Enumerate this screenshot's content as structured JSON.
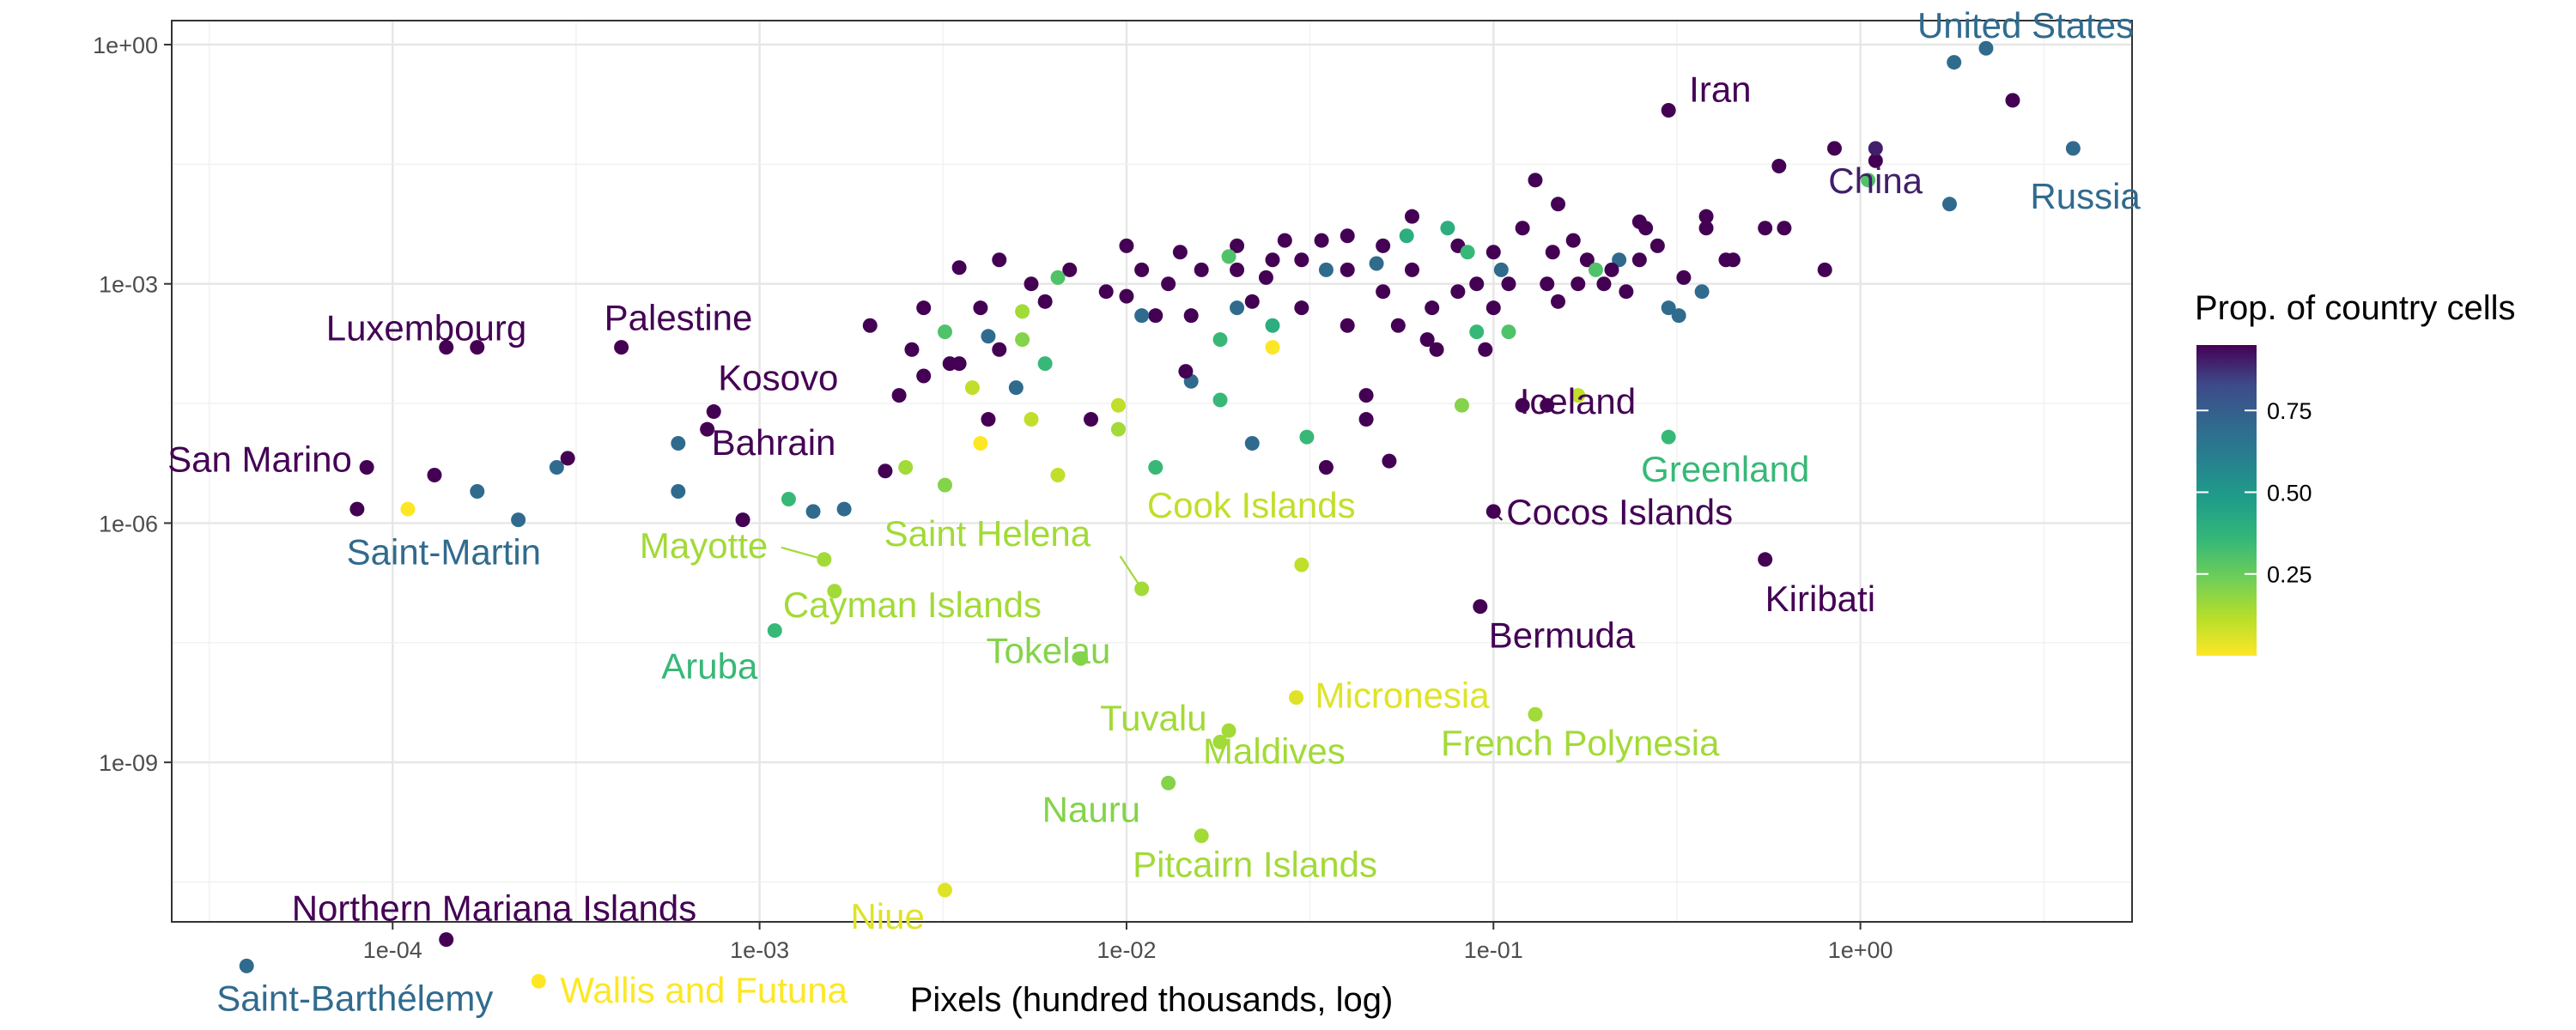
{
  "chart_data": {
    "type": "scatter",
    "xlabel": "Pixels (hundred thousands, log)",
    "ylabel": "",
    "xscale": "log10",
    "yscale": "log10",
    "xlim": [
      2.5e-05,
      5.5
    ],
    "ylim": [
      1e-11,
      2
    ],
    "x_ticks": [
      {
        "value": 0.0001,
        "label": "1e-04"
      },
      {
        "value": 0.001,
        "label": "1e-03"
      },
      {
        "value": 0.01,
        "label": "1e-02"
      },
      {
        "value": 0.1,
        "label": "1e-01"
      },
      {
        "value": 1,
        "label": "1e+00"
      }
    ],
    "y_ticks": [
      {
        "value": 1e-09,
        "label": "1e-09"
      },
      {
        "value": 1e-06,
        "label": "1e-06"
      },
      {
        "value": 0.001,
        "label": "1e-03"
      },
      {
        "value": 1,
        "label": "1e+00"
      }
    ],
    "grid": true,
    "color_scale": {
      "name": "viridis",
      "title": "Prop. of country cells",
      "range": [
        0.0,
        0.95
      ],
      "ticks": [
        {
          "value": 0.25,
          "label": "0.25"
        },
        {
          "value": 0.5,
          "label": "0.50"
        },
        {
          "value": 0.75,
          "label": "0.75"
        }
      ],
      "legend_position": "right"
    },
    "labeled_points": [
      {
        "name": "United States",
        "x": 2.2,
        "y": 0.9,
        "color": 0.7
      },
      {
        "name": "China",
        "x": 1.1,
        "y": 0.05,
        "color": 0.9
      },
      {
        "name": "Russia",
        "x": 3.8,
        "y": 0.05,
        "color": 0.7
      },
      {
        "name": "Iran",
        "x": 0.3,
        "y": 0.15,
        "color": 0.95
      },
      {
        "name": "Iceland",
        "x": 0.14,
        "y": 3e-05,
        "color": 0.95
      },
      {
        "name": "Greenland",
        "x": 0.3,
        "y": 1.2e-05,
        "color": 0.35
      },
      {
        "name": "Cocos Islands",
        "x": 0.1,
        "y": 1.4e-06,
        "color": 0.95
      },
      {
        "name": "Bermuda",
        "x": 0.092,
        "y": 9e-08,
        "color": 0.95
      },
      {
        "name": "Kiribati",
        "x": 0.55,
        "y": 3.5e-07,
        "color": 0.95
      },
      {
        "name": "Palestine",
        "x": 0.00042,
        "y": 0.00016,
        "color": 0.95
      },
      {
        "name": "Luxembourg",
        "x": 0.00014,
        "y": 0.00016,
        "color": 0.95
      },
      {
        "name": "Kosovo",
        "x": 0.00075,
        "y": 2.5e-05,
        "color": 0.95
      },
      {
        "name": "San Marino",
        "x": 8.5e-05,
        "y": 5e-06,
        "color": 0.95
      },
      {
        "name": "Bahrain",
        "x": 0.00072,
        "y": 1.5e-05,
        "color": 0.95
      },
      {
        "name": "Saint-Martin",
        "x": 0.00022,
        "y": 1.1e-06,
        "color": 0.7
      },
      {
        "name": "Mayotte",
        "x": 0.0015,
        "y": 3.5e-07,
        "color": 0.15
      },
      {
        "name": "Cayman Islands",
        "x": 0.0016,
        "y": 1.4e-07,
        "color": 0.15
      },
      {
        "name": "Aruba",
        "x": 0.0011,
        "y": 4.5e-08,
        "color": 0.35
      },
      {
        "name": "Saint Helena",
        "x": 0.011,
        "y": 1.5e-07,
        "color": 0.15
      },
      {
        "name": "Tokelau",
        "x": 0.0075,
        "y": 2e-08,
        "color": 0.2
      },
      {
        "name": "Cook Islands",
        "x": 0.03,
        "y": 3e-07,
        "color": 0.1
      },
      {
        "name": "Tuvalu",
        "x": 0.019,
        "y": 2.5e-09,
        "color": 0.15
      },
      {
        "name": "Micronesia",
        "x": 0.029,
        "y": 6.5e-09,
        "color": 0.05
      },
      {
        "name": "Maldives",
        "x": 0.018,
        "y": 1.8e-09,
        "color": 0.15
      },
      {
        "name": "French Polynesia",
        "x": 0.13,
        "y": 4e-09,
        "color": 0.15
      },
      {
        "name": "Nauru",
        "x": 0.013,
        "y": 5.5e-10,
        "color": 0.2
      },
      {
        "name": "Pitcairn Islands",
        "x": 0.016,
        "y": 1.2e-10,
        "color": 0.15
      },
      {
        "name": "Niue",
        "x": 0.0032,
        "y": 2.5e-11,
        "color": 0.05
      },
      {
        "name": "Northern Mariana Islands",
        "x": 0.00014,
        "y": 6e-12,
        "color": 0.95
      },
      {
        "name": "Saint-Barthélemy",
        "x": 4e-05,
        "y": 2.8e-12,
        "color": 0.7
      },
      {
        "name": "Wallis and Futuna",
        "x": 0.00025,
        "y": 1.8e-12,
        "color": 0.0
      }
    ],
    "points": [
      {
        "x": 2.6,
        "y": 0.2,
        "c": 0.95
      },
      {
        "x": 1.8,
        "y": 0.6,
        "c": 0.7
      },
      {
        "x": 0.85,
        "y": 0.05,
        "c": 0.95
      },
      {
        "x": 1.05,
        "y": 0.02,
        "c": 0.3
      },
      {
        "x": 1.1,
        "y": 0.035,
        "c": 0.95
      },
      {
        "x": 0.6,
        "y": 0.03,
        "c": 0.95
      },
      {
        "x": 0.8,
        "y": 0.0015,
        "c": 0.95
      },
      {
        "x": 1.75,
        "y": 0.01,
        "c": 0.7
      },
      {
        "x": 0.62,
        "y": 0.005,
        "c": 0.95
      },
      {
        "x": 0.55,
        "y": 0.005,
        "c": 0.95
      },
      {
        "x": 0.45,
        "y": 0.002,
        "c": 0.95
      },
      {
        "x": 0.38,
        "y": 0.007,
        "c": 0.95
      },
      {
        "x": 0.38,
        "y": 0.005,
        "c": 0.95
      },
      {
        "x": 0.37,
        "y": 0.0008,
        "c": 0.7
      },
      {
        "x": 0.3,
        "y": 0.0005,
        "c": 0.7
      },
      {
        "x": 0.28,
        "y": 0.003,
        "c": 0.95
      },
      {
        "x": 0.25,
        "y": 0.006,
        "c": 0.95
      },
      {
        "x": 0.26,
        "y": 0.005,
        "c": 0.95
      },
      {
        "x": 0.25,
        "y": 0.002,
        "c": 0.95
      },
      {
        "x": 0.22,
        "y": 0.002,
        "c": 0.7
      },
      {
        "x": 0.2,
        "y": 0.001,
        "c": 0.95
      },
      {
        "x": 0.18,
        "y": 0.002,
        "c": 0.95
      },
      {
        "x": 0.17,
        "y": 0.001,
        "c": 0.95
      },
      {
        "x": 0.15,
        "y": 0.0006,
        "c": 0.95
      },
      {
        "x": 0.15,
        "y": 0.01,
        "c": 0.95
      },
      {
        "x": 0.14,
        "y": 0.001,
        "c": 0.95
      },
      {
        "x": 0.13,
        "y": 0.02,
        "c": 0.95
      },
      {
        "x": 0.12,
        "y": 0.005,
        "c": 0.95
      },
      {
        "x": 0.11,
        "y": 0.001,
        "c": 0.95
      },
      {
        "x": 0.1,
        "y": 0.0005,
        "c": 0.95
      },
      {
        "x": 0.1,
        "y": 0.0025,
        "c": 0.95
      },
      {
        "x": 0.09,
        "y": 0.001,
        "c": 0.95
      },
      {
        "x": 0.09,
        "y": 0.00025,
        "c": 0.35
      },
      {
        "x": 0.08,
        "y": 0.003,
        "c": 0.95
      },
      {
        "x": 0.08,
        "y": 0.0008,
        "c": 0.95
      },
      {
        "x": 0.075,
        "y": 0.005,
        "c": 0.4
      },
      {
        "x": 0.07,
        "y": 0.00015,
        "c": 0.95
      },
      {
        "x": 0.06,
        "y": 0.007,
        "c": 0.95
      },
      {
        "x": 0.06,
        "y": 0.0015,
        "c": 0.95
      },
      {
        "x": 0.055,
        "y": 0.0003,
        "c": 0.95
      },
      {
        "x": 0.05,
        "y": 0.003,
        "c": 0.95
      },
      {
        "x": 0.05,
        "y": 0.0008,
        "c": 0.95
      },
      {
        "x": 0.045,
        "y": 4e-05,
        "c": 0.95
      },
      {
        "x": 0.045,
        "y": 2e-05,
        "c": 0.95
      },
      {
        "x": 0.04,
        "y": 0.004,
        "c": 0.95
      },
      {
        "x": 0.04,
        "y": 0.0015,
        "c": 0.95
      },
      {
        "x": 0.04,
        "y": 0.0003,
        "c": 0.95
      },
      {
        "x": 0.035,
        "y": 0.0015,
        "c": 0.7
      },
      {
        "x": 0.035,
        "y": 5e-06,
        "c": 0.95
      },
      {
        "x": 0.03,
        "y": 0.002,
        "c": 0.95
      },
      {
        "x": 0.03,
        "y": 0.0005,
        "c": 0.95
      },
      {
        "x": 0.025,
        "y": 0.002,
        "c": 0.95
      },
      {
        "x": 0.025,
        "y": 0.0003,
        "c": 0.4
      },
      {
        "x": 0.022,
        "y": 0.0006,
        "c": 0.95
      },
      {
        "x": 0.02,
        "y": 0.003,
        "c": 0.95
      },
      {
        "x": 0.02,
        "y": 0.0015,
        "c": 0.95
      },
      {
        "x": 0.02,
        "y": 0.0005,
        "c": 0.7
      },
      {
        "x": 0.018,
        "y": 0.0002,
        "c": 0.35
      },
      {
        "x": 0.016,
        "y": 0.0015,
        "c": 0.95
      },
      {
        "x": 0.015,
        "y": 0.0004,
        "c": 0.95
      },
      {
        "x": 0.014,
        "y": 0.0025,
        "c": 0.95
      },
      {
        "x": 0.013,
        "y": 0.001,
        "c": 0.95
      },
      {
        "x": 0.012,
        "y": 0.0004,
        "c": 0.95
      },
      {
        "x": 0.011,
        "y": 0.0015,
        "c": 0.95
      },
      {
        "x": 0.01,
        "y": 0.003,
        "c": 0.95
      },
      {
        "x": 0.01,
        "y": 0.0007,
        "c": 0.95
      },
      {
        "x": 0.0095,
        "y": 3e-05,
        "c": 0.1
      },
      {
        "x": 0.0095,
        "y": 1.5e-05,
        "c": 0.15
      },
      {
        "x": 0.0088,
        "y": 0.0008,
        "c": 0.95
      },
      {
        "x": 0.008,
        "y": 2e-05,
        "c": 0.95
      },
      {
        "x": 0.007,
        "y": 0.0015,
        "c": 0.95
      },
      {
        "x": 0.006,
        "y": 0.0006,
        "c": 0.95
      },
      {
        "x": 0.006,
        "y": 0.0001,
        "c": 0.35
      },
      {
        "x": 0.0055,
        "y": 0.001,
        "c": 0.95
      },
      {
        "x": 0.0052,
        "y": 0.0002,
        "c": 0.2
      },
      {
        "x": 0.005,
        "y": 5e-05,
        "c": 0.7
      },
      {
        "x": 0.0045,
        "y": 0.002,
        "c": 0.95
      },
      {
        "x": 0.004,
        "y": 0.0005,
        "c": 0.95
      },
      {
        "x": 0.004,
        "y": 1e-05,
        "c": 0.0
      },
      {
        "x": 0.0038,
        "y": 5e-05,
        "c": 0.1
      },
      {
        "x": 0.0035,
        "y": 0.0016,
        "c": 0.95
      },
      {
        "x": 0.0033,
        "y": 0.0001,
        "c": 0.95
      },
      {
        "x": 0.0032,
        "y": 3e-06,
        "c": 0.2
      },
      {
        "x": 0.0028,
        "y": 0.0005,
        "c": 0.95
      },
      {
        "x": 0.0026,
        "y": 0.00015,
        "c": 0.95
      },
      {
        "x": 0.0025,
        "y": 5e-06,
        "c": 0.15
      },
      {
        "x": 0.002,
        "y": 0.0003,
        "c": 0.95
      },
      {
        "x": 0.0017,
        "y": 1.5e-06,
        "c": 0.7
      },
      {
        "x": 0.0014,
        "y": 1.4e-06,
        "c": 0.7
      },
      {
        "x": 0.0012,
        "y": 2e-06,
        "c": 0.35
      },
      {
        "x": 0.0009,
        "y": 1.1e-06,
        "c": 0.95
      },
      {
        "x": 0.0006,
        "y": 1e-05,
        "c": 0.7
      },
      {
        "x": 0.0006,
        "y": 2.5e-06,
        "c": 0.7
      },
      {
        "x": 0.0003,
        "y": 6.5e-06,
        "c": 0.95
      },
      {
        "x": 0.00028,
        "y": 5e-06,
        "c": 0.7
      },
      {
        "x": 0.00013,
        "y": 4e-06,
        "c": 0.95
      },
      {
        "x": 0.00017,
        "y": 2.5e-06,
        "c": 0.7
      },
      {
        "x": 8e-05,
        "y": 1.5e-06,
        "c": 0.95
      },
      {
        "x": 0.00011,
        "y": 1.5e-06,
        "c": 0.0
      },
      {
        "x": 0.00017,
        "y": 0.00016,
        "c": 0.95
      },
      {
        "x": 0.0055,
        "y": 2e-05,
        "c": 0.1
      },
      {
        "x": 0.0022,
        "y": 4.5e-06,
        "c": 0.95
      },
      {
        "x": 0.0042,
        "y": 2e-05,
        "c": 0.95
      },
      {
        "x": 0.0065,
        "y": 4e-06,
        "c": 0.1
      },
      {
        "x": 0.012,
        "y": 5e-06,
        "c": 0.35
      },
      {
        "x": 0.022,
        "y": 1e-05,
        "c": 0.7
      },
      {
        "x": 0.031,
        "y": 1.2e-05,
        "c": 0.35
      },
      {
        "x": 0.052,
        "y": 6e-06,
        "c": 0.95
      },
      {
        "x": 0.12,
        "y": 3e-05,
        "c": 0.95
      },
      {
        "x": 0.105,
        "y": 0.0015,
        "c": 0.7
      },
      {
        "x": 0.085,
        "y": 0.0025,
        "c": 0.35
      },
      {
        "x": 0.068,
        "y": 0.0005,
        "c": 0.95
      },
      {
        "x": 0.058,
        "y": 0.004,
        "c": 0.4
      },
      {
        "x": 0.048,
        "y": 0.0018,
        "c": 0.7
      },
      {
        "x": 0.034,
        "y": 0.0035,
        "c": 0.95
      },
      {
        "x": 0.027,
        "y": 0.0035,
        "c": 0.95
      },
      {
        "x": 0.024,
        "y": 0.0012,
        "c": 0.95
      },
      {
        "x": 0.019,
        "y": 0.0022,
        "c": 0.3
      },
      {
        "x": 0.0065,
        "y": 0.0012,
        "c": 0.3
      },
      {
        "x": 0.0052,
        "y": 0.00045,
        "c": 0.15
      },
      {
        "x": 0.0042,
        "y": 0.00022,
        "c": 0.7
      },
      {
        "x": 0.0035,
        "y": 0.0001,
        "c": 0.95
      },
      {
        "x": 0.0028,
        "y": 7e-05,
        "c": 0.95
      },
      {
        "x": 0.0024,
        "y": 4e-05,
        "c": 0.95
      },
      {
        "x": 0.0045,
        "y": 0.00015,
        "c": 0.95
      },
      {
        "x": 0.0032,
        "y": 0.00025,
        "c": 0.3
      },
      {
        "x": 0.015,
        "y": 6e-05,
        "c": 0.7
      },
      {
        "x": 0.018,
        "y": 3.5e-05,
        "c": 0.35
      },
      {
        "x": 0.145,
        "y": 0.0025,
        "c": 0.95
      },
      {
        "x": 0.165,
        "y": 0.0035,
        "c": 0.95
      },
      {
        "x": 0.19,
        "y": 0.0015,
        "c": 0.3
      },
      {
        "x": 0.21,
        "y": 0.0015,
        "c": 0.95
      },
      {
        "x": 0.23,
        "y": 0.0008,
        "c": 0.95
      },
      {
        "x": 0.32,
        "y": 0.0004,
        "c": 0.7
      },
      {
        "x": 0.33,
        "y": 0.0012,
        "c": 0.95
      },
      {
        "x": 0.43,
        "y": 0.002,
        "c": 0.95
      },
      {
        "x": 0.17,
        "y": 4e-05,
        "c": 0.1
      },
      {
        "x": 0.082,
        "y": 3e-05,
        "c": 0.2
      },
      {
        "x": 0.11,
        "y": 0.00025,
        "c": 0.3
      },
      {
        "x": 0.095,
        "y": 0.00015,
        "c": 0.95
      },
      {
        "x": 0.066,
        "y": 0.0002,
        "c": 0.95
      },
      {
        "x": 0.025,
        "y": 0.00016,
        "c": 0.0
      },
      {
        "x": 0.0145,
        "y": 8e-05,
        "c": 0.95
      },
      {
        "x": 0.011,
        "y": 0.0004,
        "c": 0.7
      }
    ]
  }
}
